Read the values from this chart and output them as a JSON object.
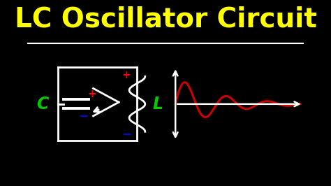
{
  "title": "LC Oscillator Circuit",
  "title_color": "#FFFF00",
  "title_fontsize": 28,
  "bg_color": "#000000",
  "separator_color": "#FFFFFF",
  "circuit_color": "#FFFFFF",
  "label_C_color": "#00CC00",
  "label_L_color": "#00CC00",
  "plus_color": "#FF0000",
  "minus_color": "#0000FF",
  "wave_color": "#CC0000",
  "arrow_color": "#FFFFFF",
  "wave_decay": 0.32,
  "wave_freq": 2.0,
  "wave_amplitude": 1.5
}
